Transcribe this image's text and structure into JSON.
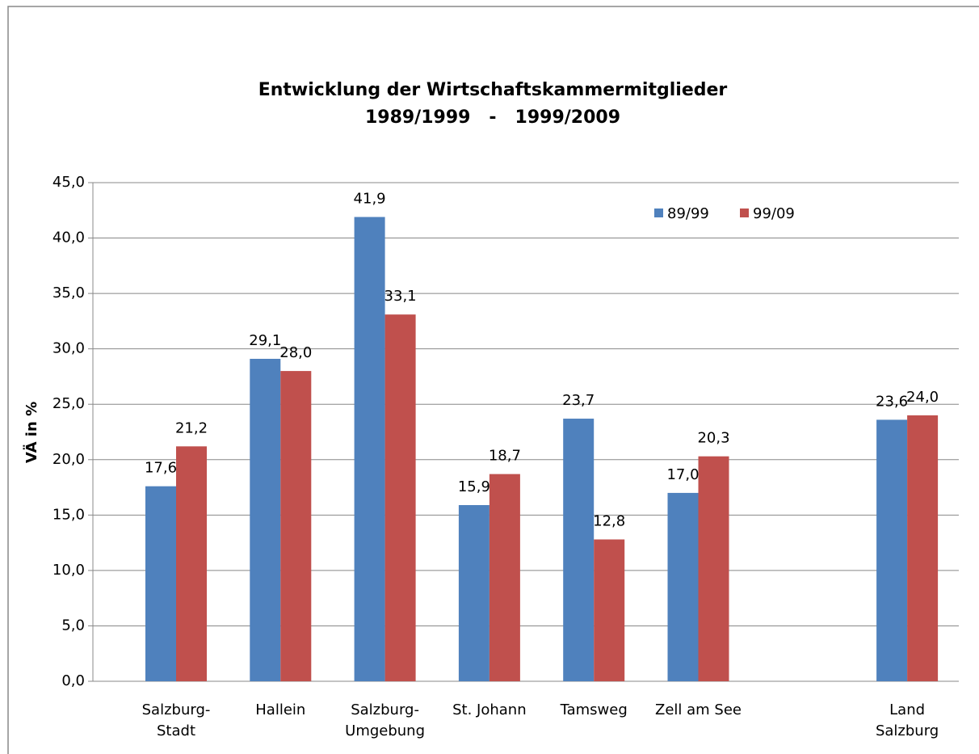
{
  "chart_data": {
    "type": "bar",
    "title": "Entwicklung der Wirtschaftskammermitglieder",
    "subtitle": "1989/1999   -   1999/2009",
    "y_label": "VÄ in %",
    "categories": [
      "Salzburg-\nStadt",
      "Hallein",
      "Salzburg-\nUmgebung",
      "St. Johann",
      "Tamsweg",
      "Zell am See",
      null,
      "Land\nSalzburg"
    ],
    "series": [
      {
        "name": "89/99",
        "color": "#4f81bd",
        "values": [
          17.6,
          29.1,
          41.9,
          15.9,
          23.7,
          17.0,
          null,
          23.6
        ],
        "value_labels": [
          "17,6",
          "29,1",
          "41,9",
          "15,9",
          "23,7",
          "17,0",
          null,
          "23,6"
        ]
      },
      {
        "name": "99/09",
        "color": "#c0504d",
        "values": [
          21.2,
          28.0,
          33.1,
          18.7,
          12.8,
          20.3,
          null,
          24.0
        ],
        "value_labels": [
          "21,2",
          "28,0",
          "33,1",
          "18,7",
          "12,8",
          "20,3",
          null,
          "24,0"
        ]
      }
    ],
    "ylim": [
      0,
      45
    ],
    "yticks": [
      {
        "value": 0,
        "label": "0,0"
      },
      {
        "value": 5,
        "label": "5,0"
      },
      {
        "value": 10,
        "label": "10,0"
      },
      {
        "value": 15,
        "label": "15,0"
      },
      {
        "value": 20,
        "label": "20,0"
      },
      {
        "value": 25,
        "label": "25,0"
      },
      {
        "value": 30,
        "label": "30,0"
      },
      {
        "value": 35,
        "label": "35,0"
      },
      {
        "value": 40,
        "label": "40,0"
      },
      {
        "value": 45,
        "label": "45,0"
      }
    ],
    "grid": true,
    "legend": "top-right"
  }
}
